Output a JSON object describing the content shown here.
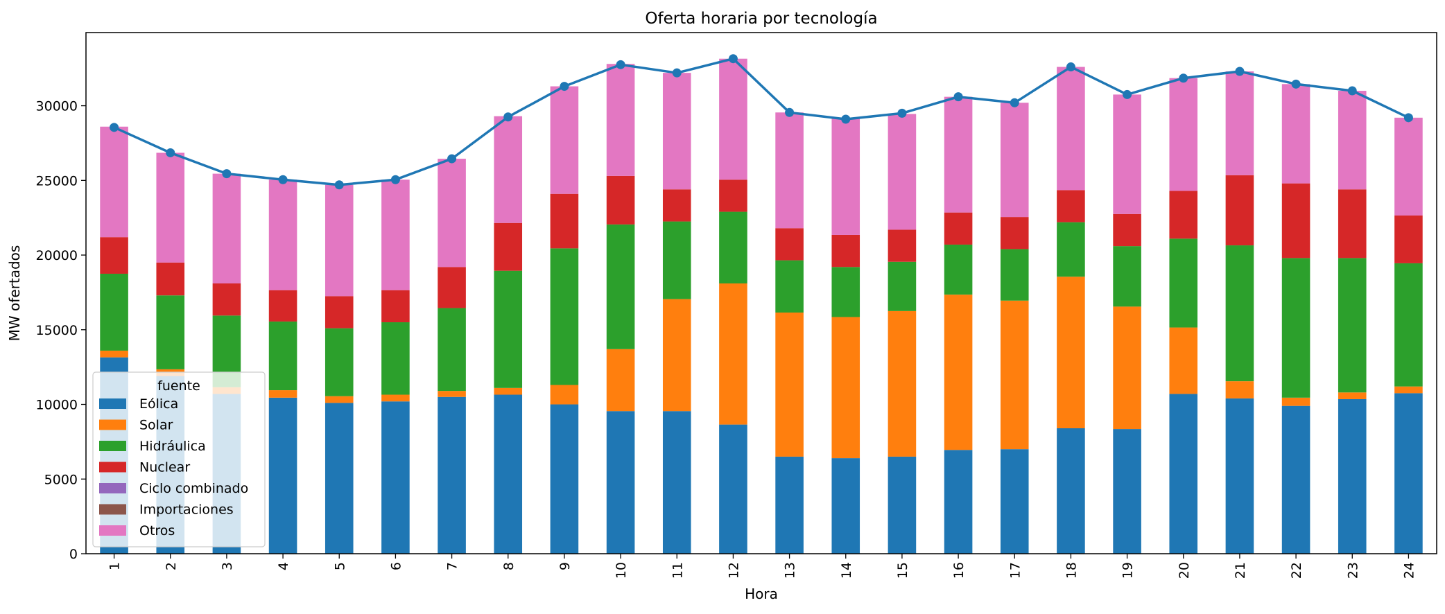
{
  "chart_data": {
    "type": "bar",
    "stacked": true,
    "title": "Oferta horaria por tecnología",
    "xlabel": "Hora",
    "ylabel": "MW ofertados",
    "ylim": [
      0,
      34900
    ],
    "yticks": [
      0,
      5000,
      10000,
      15000,
      20000,
      25000,
      30000
    ],
    "grid": false,
    "categories": [
      "1",
      "2",
      "3",
      "4",
      "5",
      "6",
      "7",
      "8",
      "9",
      "10",
      "11",
      "12",
      "13",
      "14",
      "15",
      "16",
      "17",
      "18",
      "19",
      "20",
      "21",
      "22",
      "23",
      "24"
    ],
    "legend": {
      "title": "fuente",
      "position": "lower-left"
    },
    "series": [
      {
        "name": "Eólica",
        "color": "#1f77b4",
        "values": [
          13150,
          11900,
          10700,
          10450,
          10100,
          10200,
          10500,
          10650,
          10000,
          9550,
          9550,
          8650,
          6500,
          6400,
          6500,
          6950,
          7000,
          8400,
          8350,
          10700,
          10400,
          9900,
          10350,
          10750
        ]
      },
      {
        "name": "Solar",
        "color": "#ff7f0e",
        "values": [
          450,
          450,
          450,
          500,
          450,
          450,
          400,
          450,
          1300,
          4150,
          7500,
          9450,
          9650,
          9450,
          9750,
          10400,
          9950,
          10150,
          8200,
          4450,
          1150,
          550,
          450,
          450
        ]
      },
      {
        "name": "Hidráulica",
        "color": "#2ca02c",
        "values": [
          5150,
          4950,
          4800,
          4600,
          4550,
          4850,
          5550,
          7850,
          9150,
          8350,
          5200,
          4800,
          3500,
          3350,
          3300,
          3350,
          3450,
          3650,
          4050,
          5950,
          9100,
          9350,
          9000,
          8250
        ]
      },
      {
        "name": "Nuclear",
        "color": "#d62728",
        "values": [
          2450,
          2200,
          2150,
          2100,
          2150,
          2150,
          2750,
          3200,
          3650,
          3250,
          2150,
          2150,
          2150,
          2150,
          2150,
          2150,
          2150,
          2150,
          2150,
          3200,
          4700,
          5000,
          4600,
          3200
        ]
      },
      {
        "name": "Ciclo combinado",
        "color": "#9467bd",
        "values": [
          0,
          0,
          0,
          0,
          0,
          0,
          0,
          0,
          0,
          0,
          0,
          0,
          0,
          0,
          0,
          0,
          0,
          0,
          0,
          0,
          0,
          0,
          0,
          0
        ]
      },
      {
        "name": "Importaciones",
        "color": "#8c564b",
        "values": [
          0,
          0,
          0,
          0,
          0,
          0,
          0,
          0,
          0,
          0,
          0,
          0,
          0,
          0,
          0,
          0,
          0,
          0,
          0,
          0,
          0,
          0,
          0,
          0
        ]
      },
      {
        "name": "Otros",
        "color": "#e377c2",
        "values": [
          7400,
          7350,
          7350,
          7400,
          7450,
          7400,
          7250,
          7150,
          7200,
          7500,
          7800,
          8100,
          7750,
          7800,
          7750,
          7750,
          7650,
          8250,
          8000,
          7550,
          6950,
          6650,
          6600,
          6550
        ]
      }
    ],
    "line": {
      "color": "#1f77b4",
      "values": [
        28550,
        26850,
        25450,
        25050,
        24700,
        25050,
        26450,
        29250,
        31300,
        32750,
        32200,
        33150,
        29550,
        29100,
        29500,
        30600,
        30200,
        32600,
        30750,
        31850,
        32300,
        31450,
        31000,
        29200
      ]
    }
  }
}
